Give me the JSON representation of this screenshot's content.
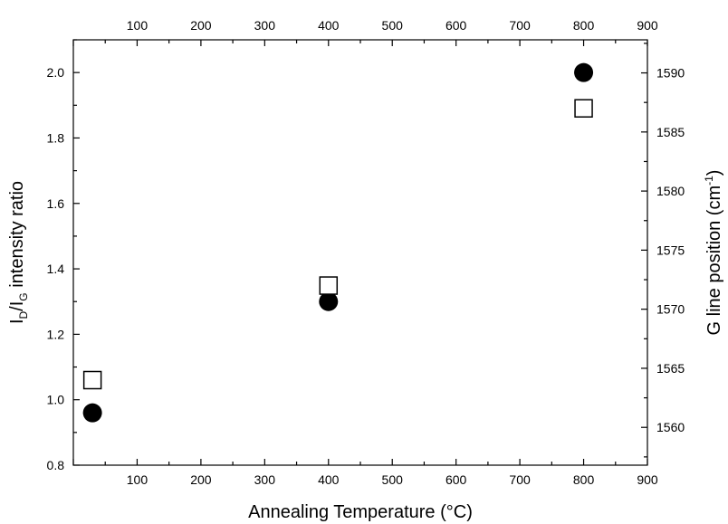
{
  "chart_data": {
    "type": "scatter",
    "title": "",
    "xlabel": "Annealing Temperature (°C)",
    "ylabel": {
      "main_1": "I",
      "sub_1": "D",
      "main_2": "/I",
      "sub_2": "G",
      "main_3": " intensity ratio"
    },
    "y2label": {
      "main_1": "G line position (cm",
      "sup": "-1",
      "main_2": ")"
    },
    "xlim": [
      0,
      900
    ],
    "ylim": [
      0.8,
      2.1
    ],
    "y2lim": [
      1556.8,
      1592.8
    ],
    "x_ticks": [
      100,
      200,
      300,
      400,
      500,
      600,
      700,
      800,
      900
    ],
    "x_tick_labels": [
      "100",
      "200",
      "300",
      "400",
      "500",
      "600",
      "700",
      "800",
      "900"
    ],
    "top_x_tick_labels": [
      "100",
      "200",
      "300",
      "400",
      "500",
      "600",
      "700",
      "800",
      "900"
    ],
    "y_ticks": [
      0.8,
      1.0,
      1.2,
      1.4,
      1.6,
      1.8,
      2.0
    ],
    "y_tick_labels": [
      "0.8",
      "1.0",
      "1.2",
      "1.4",
      "1.6",
      "1.8",
      "2.0"
    ],
    "y2_ticks": [
      1560,
      1565,
      1570,
      1575,
      1580,
      1585,
      1590
    ],
    "y2_tick_labels": [
      "1560",
      "1565",
      "1570",
      "1575",
      "1580",
      "1585",
      "1590"
    ],
    "grid": false,
    "series": [
      {
        "marker": "filled-circle",
        "axis": "left",
        "color": "#000000",
        "x": [
          30,
          400,
          800
        ],
        "y": [
          0.96,
          1.3,
          2.0
        ]
      },
      {
        "marker": "open-square",
        "axis": "right",
        "color": "#000000",
        "x": [
          30,
          400,
          800
        ],
        "y": [
          1564.0,
          1572.0,
          1587.0
        ]
      }
    ]
  }
}
